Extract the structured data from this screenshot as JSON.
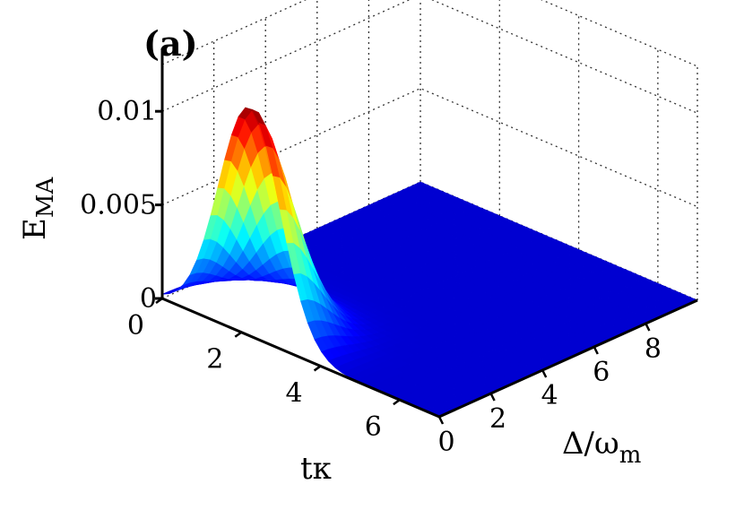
{
  "chart_data": {
    "type": "surface",
    "panel_label": "(a)",
    "xlabel": "tκ",
    "ylabel_main": "Δ/ω",
    "ylabel_sub": "m",
    "zlabel_main": "E",
    "zlabel_sub": "MA",
    "x_range": [
      0,
      7
    ],
    "y_range": [
      0,
      10
    ],
    "z_range": [
      0,
      0.0125
    ],
    "x_ticks": [
      "0",
      "2",
      "4",
      "6"
    ],
    "y_ticks": [
      "0",
      "2",
      "4",
      "6",
      "8"
    ],
    "z_ticks": [
      "0",
      "0.005",
      "0.01"
    ],
    "colormap": "jet",
    "grid": true,
    "peak": {
      "t_kappa": 2.2,
      "delta_over_omega_m": 0,
      "E_MA": 0.0122
    },
    "surface_model": {
      "description": "E_MA(tκ, Δ/ω_m) ≈ peak · exp(-((tκ-2.2)/1.1)^2) · exp(-(Δ/ω_m)^2/2.4)",
      "amplitude": 0.0122,
      "t_center": 2.2,
      "t_width": 1.1,
      "delta_width_sq": 2.4
    }
  }
}
